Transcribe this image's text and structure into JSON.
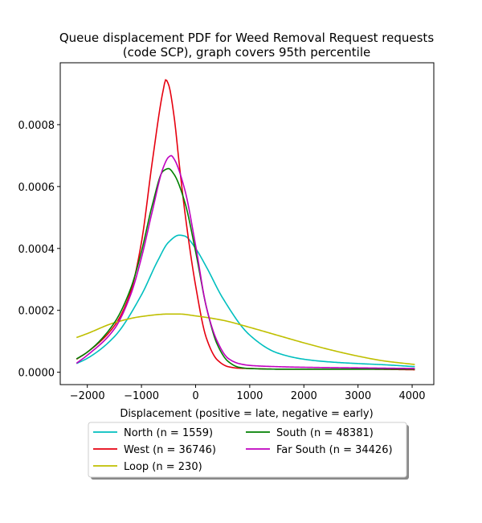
{
  "chart_data": {
    "type": "line",
    "title_line1": "Queue displacement PDF for Weed Removal Request  requests",
    "title_line2": "(code SCP), graph covers 95th percentile",
    "xlabel": "Displacement (positive = late, negative = early)",
    "ylabel": "",
    "xlim": [
      -2500,
      4400
    ],
    "ylim": [
      -4e-05,
      0.001
    ],
    "xticks": [
      -2000,
      -1000,
      0,
      1000,
      2000,
      3000,
      4000
    ],
    "xtick_labels": [
      "−2000",
      "−1000",
      "0",
      "1000",
      "2000",
      "3000",
      "4000"
    ],
    "yticks": [
      0.0,
      0.0002,
      0.0004,
      0.0006,
      0.0008
    ],
    "ytick_labels": [
      "0.0000",
      "0.0002",
      "0.0004",
      "0.0006",
      "0.0008"
    ],
    "grid": false,
    "legend_placement": "below",
    "legend_columns": 2,
    "series": [
      {
        "name": "North (n = 1559)",
        "color": "#00bfbf",
        "x": [
          -2200,
          -2000,
          -1500,
          -1000,
          -700,
          -500,
          -300,
          -200,
          0,
          200,
          500,
          1000,
          1500,
          2000,
          2500,
          3000,
          3500,
          4050
        ],
        "y": [
          2.8e-05,
          4.5e-05,
          0.000115,
          0.00025,
          0.00036,
          0.00042,
          0.000443,
          0.00044,
          0.0004,
          0.00034,
          0.00024,
          0.00012,
          6.3e-05,
          4.2e-05,
          3.3e-05,
          2.8e-05,
          2.4e-05,
          1.8e-05
        ]
      },
      {
        "name": "West (n = 36746)",
        "color": "#e6000f",
        "x": [
          -2200,
          -2000,
          -1500,
          -1200,
          -1000,
          -800,
          -600,
          -550,
          -500,
          -400,
          -300,
          -200,
          0,
          200,
          400,
          600,
          800,
          1000,
          1500,
          2000,
          3000,
          4050
        ],
        "y": [
          4.2e-05,
          6.5e-05,
          0.00015,
          0.00026,
          0.00042,
          0.00068,
          0.00091,
          0.000945,
          0.00093,
          0.00083,
          0.00067,
          0.00052,
          0.00028,
          0.00011,
          4e-05,
          1.8e-05,
          1.3e-05,
          1.2e-05,
          1e-05,
          1e-05,
          1e-05,
          8e-06
        ]
      },
      {
        "name": "Loop (n = 230)",
        "color": "#bfbf00",
        "x": [
          -2200,
          -2000,
          -1500,
          -1000,
          -500,
          -300,
          0,
          500,
          1000,
          1500,
          2000,
          2500,
          3000,
          3500,
          4050
        ],
        "y": [
          0.000112,
          0.000125,
          0.00016,
          0.00018,
          0.000188,
          0.000188,
          0.000182,
          0.000168,
          0.000145,
          0.00012,
          9.5e-05,
          7.2e-05,
          5.2e-05,
          3.6e-05,
          2.5e-05
        ]
      },
      {
        "name": "South (n = 48381)",
        "color": "#008000",
        "x": [
          -2200,
          -2000,
          -1500,
          -1200,
          -1000,
          -800,
          -600,
          -500,
          -400,
          -200,
          0,
          200,
          400,
          600,
          800,
          1000,
          1500,
          2000,
          3000,
          4050
        ],
        "y": [
          4.3e-05,
          6.5e-05,
          0.00016,
          0.00027,
          0.00039,
          0.00054,
          0.00065,
          0.000658,
          0.00064,
          0.00055,
          0.00039,
          0.00021,
          9e-05,
          3.5e-05,
          1.6e-05,
          1.2e-05,
          1e-05,
          1e-05,
          1e-05,
          1e-05
        ]
      },
      {
        "name": "Far South (n = 34426)",
        "color": "#bf00bf",
        "x": [
          -2200,
          -2000,
          -1500,
          -1200,
          -1000,
          -800,
          -600,
          -500,
          -450,
          -400,
          -200,
          0,
          200,
          400,
          600,
          800,
          1000,
          1500,
          2000,
          3000,
          4050
        ],
        "y": [
          2.9e-05,
          5.5e-05,
          0.00014,
          0.00025,
          0.00037,
          0.00052,
          0.00066,
          0.000695,
          0.0007,
          0.00069,
          0.00059,
          0.00041,
          0.00021,
          0.0001,
          4.5e-05,
          2.8e-05,
          2.2e-05,
          1.8e-05,
          1.6e-05,
          1.4e-05,
          1.2e-05
        ]
      }
    ],
    "legend_order": [
      0,
      1,
      2,
      3,
      4
    ]
  }
}
